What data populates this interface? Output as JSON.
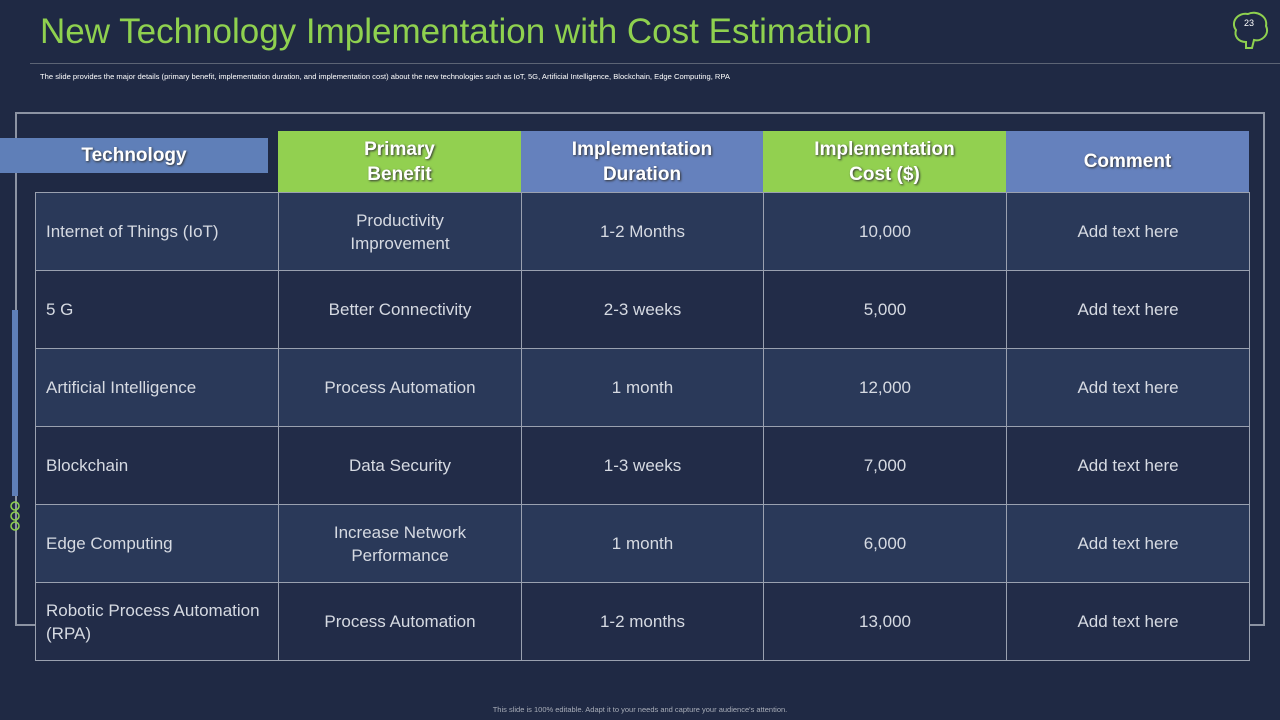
{
  "header": {
    "title": "New Technology Implementation with Cost Estimation",
    "subtitle": "The slide provides the major details (primary benefit, implementation duration, and implementation cost) about the new technologies such as IoT, 5G, Artificial Intelligence, Blockchain, Edge Computing, RPA",
    "page_number": "23"
  },
  "table": {
    "headers": [
      "Technology",
      "Primary Benefit",
      "Implementation Duration",
      "Implementation Cost ($)",
      "Comment"
    ],
    "rows": [
      [
        "Internet of Things (IoT)",
        "Productivity Improvement",
        "1-2 Months",
        "10,000",
        "Add text here"
      ],
      [
        "5 G",
        "Better Connectivity",
        "2-3 weeks",
        "5,000",
        "Add text here"
      ],
      [
        "Artificial Intelligence",
        "Process Automation",
        "1 month",
        "12,000",
        "Add text here"
      ],
      [
        "Blockchain",
        "Data Security",
        "1-3 weeks",
        "7,000",
        "Add text here"
      ],
      [
        "Edge Computing",
        "Increase Network Performance",
        "1 month",
        "6,000",
        "Add text here"
      ],
      [
        "Robotic Process Automation (RPA)",
        "Process Automation",
        "1-2 months",
        "13,000",
        "Add text here"
      ]
    ]
  },
  "footer": {
    "note": "This slide is 100% editable. Adapt it to your needs and capture your audience's attention."
  }
}
